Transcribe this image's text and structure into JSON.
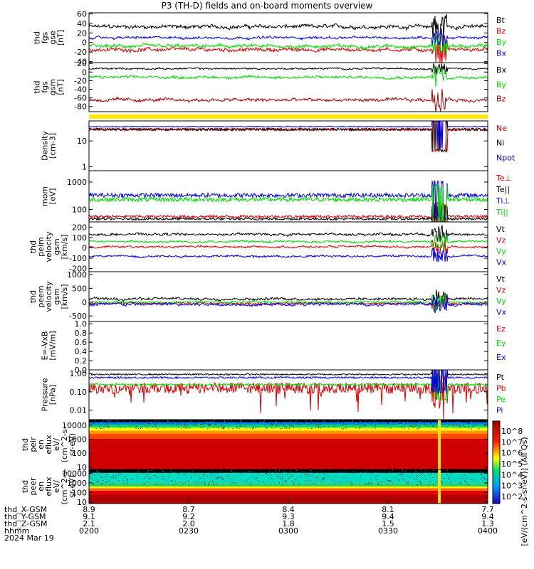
{
  "title": "P3 (TH-D) fields and on-board moments overview",
  "chart_data": {
    "type": "line",
    "panels": [
      {
        "id": "fgs_gse",
        "ylabel": [
          "thd",
          "fgs",
          "gse",
          "[nT]"
        ],
        "yticks": [
          -40,
          -20,
          0,
          20,
          40,
          60
        ],
        "ylim": [
          -42,
          62
        ],
        "scale": "linear",
        "series": [
          {
            "name": "Bt",
            "color": "#000000",
            "base": 33,
            "noise": 6
          },
          {
            "name": "Bz",
            "color": "#e00000",
            "base": -15,
            "noise": 6
          },
          {
            "name": "By",
            "color": "#00dd00",
            "base": -8,
            "noise": 6
          },
          {
            "name": "Bx",
            "color": "#0000ee",
            "base": 10,
            "noise": 4
          }
        ]
      },
      {
        "id": "fgs_gsm",
        "ylabel": [
          "thd",
          "fgs",
          "gsm",
          "[nT]"
        ],
        "yticks": [
          -80,
          -60,
          -40,
          -20,
          0,
          20
        ],
        "ylim": [
          -92,
          22
        ],
        "scale": "linear",
        "series": [
          {
            "name": "Bx",
            "color": "#000000",
            "base": 8,
            "noise": 3
          },
          {
            "name": "By",
            "color": "#00dd00",
            "base": -12,
            "noise": 5
          },
          {
            "name": "Bz",
            "color": "#aa0000",
            "base": -65,
            "noise": 6
          }
        ]
      },
      {
        "id": "density",
        "ylabel": [
          "Density",
          "[cm-3]"
        ],
        "yticks": [
          1,
          10
        ],
        "yticklabels": [
          "1",
          "10"
        ],
        "ylim": [
          0.7,
          60
        ],
        "scale": "log",
        "series": [
          {
            "name": "Ne",
            "color": "#e00000",
            "base": 28,
            "noise": 0.05
          },
          {
            "name": "Ni",
            "color": "#000000",
            "base": 28,
            "noise": 0.05
          },
          {
            "name": "Npot",
            "color": "#0000ee",
            "base": 36,
            "noise": 0.02
          }
        ]
      },
      {
        "id": "temperature",
        "ylabel": [
          "mom",
          "[eV]"
        ],
        "yticks": [
          100,
          1000
        ],
        "yticklabels": [
          "100",
          "1000"
        ],
        "ylim": [
          35,
          2600
        ],
        "scale": "log",
        "series": [
          {
            "name": "Te⊥",
            "color": "#e00000",
            "base": 55,
            "noise": 0.05
          },
          {
            "name": "Te||",
            "color": "#000000",
            "base": 45,
            "noise": 0.04
          },
          {
            "name": "Ti⊥",
            "color": "#0000ee",
            "base": 330,
            "noise": 0.08
          },
          {
            "name": "Ti||",
            "color": "#00dd00",
            "base": 230,
            "noise": 0.08
          }
        ]
      },
      {
        "id": "peim_velocity",
        "ylabel": [
          "thd",
          "peim",
          "velocity",
          "gsm",
          "[km/s]"
        ],
        "yticks": [
          -200,
          -100,
          0,
          100,
          200
        ],
        "ylim": [
          -230,
          250
        ],
        "scale": "linear",
        "series": [
          {
            "name": "Vt",
            "color": "#000000",
            "base": 130,
            "noise": 18
          },
          {
            "name": "Vz",
            "color": "#e00000",
            "base": 10,
            "noise": 15
          },
          {
            "name": "Vy",
            "color": "#00dd00",
            "base": 60,
            "noise": 15
          },
          {
            "name": "Vx",
            "color": "#0000ee",
            "base": -80,
            "noise": 15
          }
        ]
      },
      {
        "id": "peem_velocity",
        "ylabel": [
          "thd",
          "peem",
          "velocity",
          "gsm",
          "[km/s]"
        ],
        "yticks": [
          -500,
          0,
          500,
          1000
        ],
        "ylim": [
          -700,
          1100
        ],
        "scale": "linear",
        "series": [
          {
            "name": "Vt",
            "color": "#000000",
            "base": 120,
            "noise": 70
          },
          {
            "name": "Vz",
            "color": "#e00000",
            "base": -50,
            "noise": 60
          },
          {
            "name": "Vy",
            "color": "#00dd00",
            "base": 0,
            "noise": 60
          },
          {
            "name": "Vx",
            "color": "#0000ee",
            "base": -80,
            "noise": 80
          }
        ]
      },
      {
        "id": "efield",
        "ylabel": [
          "E=-VxB",
          "[mV/m]"
        ],
        "yticks": [
          0.0,
          0.2,
          0.4,
          0.6,
          0.8,
          1.0
        ],
        "yticklabels": [
          "0.0",
          "0.2",
          "0.4",
          "0.6",
          "0.8",
          "1.0"
        ],
        "ylim": [
          0,
          1.05
        ],
        "scale": "linear",
        "series": [
          {
            "name": "Ez",
            "color": "#e00000",
            "base": null,
            "noise": 0
          },
          {
            "name": "Ey",
            "color": "#00dd00",
            "base": null,
            "noise": 0
          },
          {
            "name": "Ex",
            "color": "#0000ee",
            "base": null,
            "noise": 0
          }
        ]
      },
      {
        "id": "pressure",
        "ylabel": [
          "Pressure",
          "[nPa]"
        ],
        "yticks": [
          0.01,
          0.1,
          1.0
        ],
        "yticklabels": [
          "0.01",
          "0.10",
          "1.00"
        ],
        "ylim": [
          0.003,
          1.6
        ],
        "scale": "log",
        "series": [
          {
            "name": "Pt",
            "color": "#000000",
            "base": 0.9,
            "noise": 0.04
          },
          {
            "name": "Pb",
            "color": "#e00000",
            "base": 0.16,
            "noise": 0.35
          },
          {
            "name": "Pe",
            "color": "#00dd00",
            "base": 0.25,
            "noise": 0.05
          },
          {
            "name": "Pi",
            "color": "#0000ee",
            "base": 0.6,
            "noise": 0.05
          }
        ]
      },
      {
        "id": "peir_spec",
        "ylabel": [
          "thd",
          "peir",
          "en",
          "eflux",
          "eV/",
          "(cm^2-s-",
          "sr-eV)"
        ],
        "yticks": [
          10,
          100,
          1000,
          10000
        ],
        "yticklabels": [
          "10",
          "100",
          "1000",
          "10000"
        ],
        "ylim": [
          7,
          25000
        ],
        "scale": "log",
        "spectrogram": true
      },
      {
        "id": "peer_spec",
        "ylabel": [
          "thd",
          "peer",
          "en",
          "eflux",
          "eV/",
          "(cm^2-s-",
          "sr-eV)"
        ],
        "yticks": [
          10,
          100,
          1000,
          10000
        ],
        "yticklabels": [
          "10",
          "100",
          "1000",
          "10000"
        ],
        "ylim": [
          7,
          25000
        ],
        "scale": "log",
        "spectrogram": true
      }
    ],
    "colorbar": {
      "label": "[eV/(cm^2-s-sr-eV)] (All Qs)",
      "ticks": [
        "10^8",
        "10^7",
        "10^6",
        "10^5",
        "10^4",
        "10^3",
        "10^2"
      ],
      "overlay_label": "[eV/(cm^2-s-sr-eV)] (All Qs)"
    },
    "x_axis": {
      "ticks": [
        "0200",
        "0230",
        "0300",
        "0330",
        "0400"
      ],
      "date": "2024 Mar 19",
      "rows": [
        {
          "label": "thd_X-GSM",
          "values": [
            "8.9",
            "8.7",
            "8.4",
            "8.1",
            "7.7"
          ]
        },
        {
          "label": "thd_Y-GSM",
          "values": [
            "9.1",
            "9.2",
            "9.3",
            "9.4",
            "9.4"
          ]
        },
        {
          "label": "thd_Z-GSM",
          "values": [
            "2.1",
            "2.0",
            "1.8",
            "1.5",
            "1.3"
          ]
        },
        {
          "label": "hhmm",
          "values": [
            "0200",
            "0230",
            "0300",
            "0330",
            "0400"
          ]
        },
        {
          "label": "2024 Mar 19",
          "values": []
        }
      ]
    }
  }
}
